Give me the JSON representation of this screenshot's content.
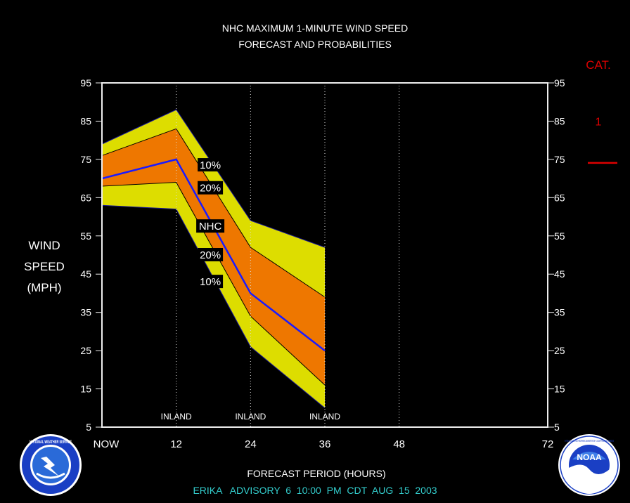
{
  "chart_data": {
    "type": "area",
    "title_line1": "NHC MAXIMUM 1-MINUTE WIND SPEED",
    "title_line2": "FORECAST AND PROBABILITIES",
    "ylabel_lines": [
      "WIND",
      "SPEED",
      "(MPH)"
    ],
    "xlabel": "FORECAST PERIOD (HOURS)",
    "footer": "ERIKA   ADVISORY  6  10:00  PM  CDT  AUG  15  2003",
    "x_ticks": [
      {
        "x": 0,
        "label": "NOW"
      },
      {
        "x": 12,
        "label": "12"
      },
      {
        "x": 24,
        "label": "24"
      },
      {
        "x": 36,
        "label": "36"
      },
      {
        "x": 48,
        "label": "48"
      },
      {
        "x": 72,
        "label": "72"
      }
    ],
    "y_ticks": [
      5,
      15,
      25,
      35,
      45,
      55,
      65,
      75,
      85,
      95
    ],
    "xlim": [
      0,
      72
    ],
    "ylim": [
      5,
      95
    ],
    "x": [
      0,
      12,
      24,
      36
    ],
    "series": [
      {
        "name": "10%",
        "role": "outer_upper",
        "values": [
          79,
          88,
          59,
          52
        ]
      },
      {
        "name": "20%",
        "role": "inner_upper",
        "values": [
          76,
          83,
          52,
          39
        ]
      },
      {
        "name": "NHC",
        "role": "forecast",
        "values": [
          70,
          75,
          40,
          25
        ]
      },
      {
        "name": "20%",
        "role": "inner_lower",
        "values": [
          68,
          69,
          34,
          16
        ]
      },
      {
        "name": "10%",
        "role": "outer_lower",
        "values": [
          63,
          62,
          26,
          10
        ]
      }
    ],
    "band_labels": [
      {
        "text": "10%",
        "x": 17.5,
        "y": 73.5
      },
      {
        "text": "20%",
        "x": 17.5,
        "y": 67.5
      },
      {
        "text": "NHC",
        "x": 17.5,
        "y": 57.5
      },
      {
        "text": "20%",
        "x": 17.5,
        "y": 50.0
      },
      {
        "text": "10%",
        "x": 17.5,
        "y": 43.0
      }
    ],
    "inland_label": "INLAND",
    "inland_hours": [
      12,
      24,
      36
    ],
    "gridline_hours": [
      12,
      24,
      36,
      48
    ],
    "category_header": "CAT.",
    "categories": [
      {
        "label": "1",
        "y": 85,
        "marker_y": 75
      }
    ],
    "colors": {
      "outer_band": "#dddd00",
      "inner_band": "#ee7700",
      "forecast_line": "#1a1aff",
      "category": "#dd0000",
      "footer": "#33cccc"
    }
  },
  "logos": {
    "left": "NATIONAL WEATHER SERVICE",
    "right_text": "NOAA",
    "right_ring": "NATIONAL OCEANIC AND ATMOSPHERIC ADMINISTRATION • U.S. DEPARTMENT OF COMMERCE"
  }
}
